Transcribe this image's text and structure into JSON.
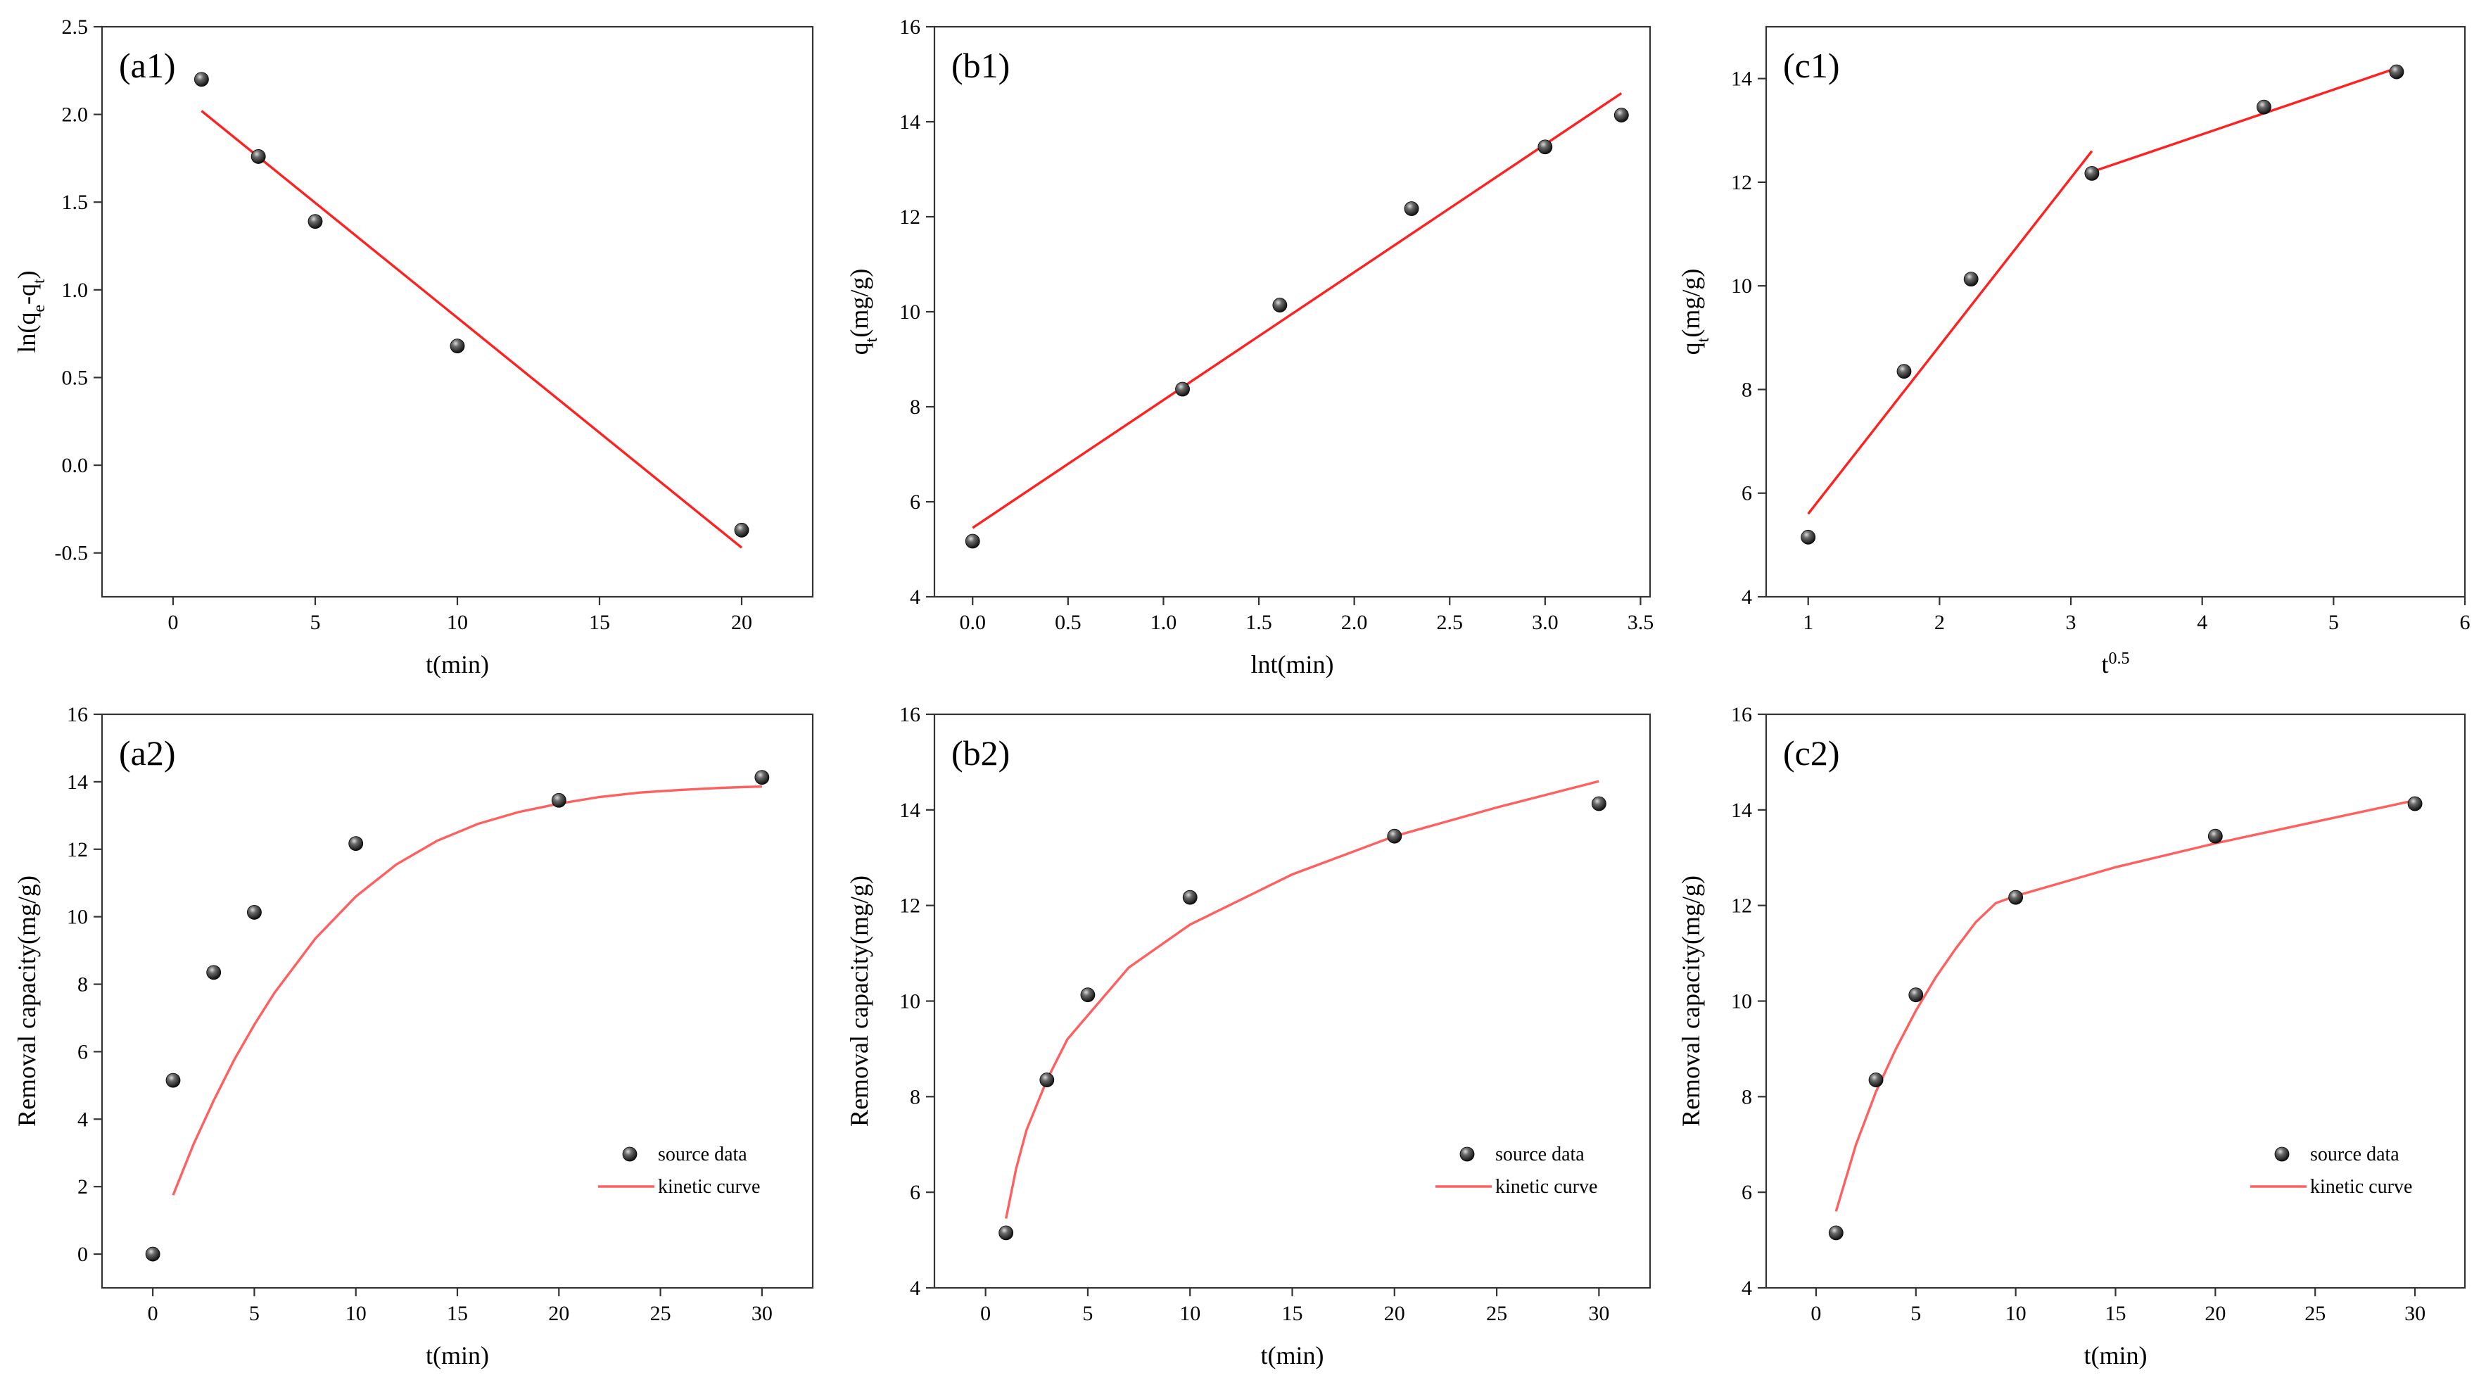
{
  "colors": {
    "fit_line": "#ff2020",
    "kinetic_curve": "#ff5f5f",
    "marker_dark": "#111111",
    "marker_light": "#bbbbbb",
    "axis": "#333333"
  },
  "chart_data": [
    {
      "id": "a1",
      "panel_label": "(a1)",
      "type": "scatter",
      "xlabel": "t(min)",
      "ylabel": "ln(qe-qt)",
      "xlim": [
        -2.5,
        22.5
      ],
      "ylim": [
        -0.75,
        2.5
      ],
      "xticks": [
        0,
        5,
        10,
        15,
        20
      ],
      "xtick_labels": [
        "0",
        "5",
        "10",
        "15",
        "20"
      ],
      "yticks": [
        -0.5,
        0.0,
        0.5,
        1.0,
        1.5,
        2.0,
        2.5
      ],
      "ytick_labels": [
        "-0.5",
        "0.0",
        "0.5",
        "1.0",
        "1.5",
        "2.0",
        "2.5"
      ],
      "points": {
        "x": [
          1,
          3,
          5,
          10,
          20
        ],
        "y": [
          2.2,
          1.76,
          1.39,
          0.68,
          -0.37
        ]
      },
      "line": {
        "style": "fit",
        "x": [
          1,
          20
        ],
        "y": [
          2.02,
          -0.47
        ]
      }
    },
    {
      "id": "b1",
      "panel_label": "(b1)",
      "type": "scatter",
      "xlabel": "lnt(min)",
      "ylabel": "qt(mg/g)",
      "xlim": [
        -0.2,
        3.55
      ],
      "ylim": [
        4,
        16
      ],
      "xticks": [
        0,
        0.5,
        1.0,
        1.5,
        2.0,
        2.5,
        3.0,
        3.5
      ],
      "xtick_labels": [
        "0.0",
        "0.5",
        "1.0",
        "1.5",
        "2.0",
        "2.5",
        "3.0",
        "3.5"
      ],
      "yticks": [
        4,
        6,
        8,
        10,
        12,
        14,
        16
      ],
      "ytick_labels": [
        "4",
        "6",
        "8",
        "10",
        "12",
        "14",
        "16"
      ],
      "points": {
        "x": [
          0,
          1.1,
          1.61,
          2.3,
          3.0,
          3.4
        ],
        "y": [
          5.17,
          8.37,
          10.14,
          12.17,
          13.47,
          14.14
        ]
      },
      "line": {
        "style": "fit",
        "x": [
          0,
          3.4
        ],
        "y": [
          5.45,
          14.6
        ]
      }
    },
    {
      "id": "c1",
      "panel_label": "(c1)",
      "type": "scatter",
      "xlabel": "t",
      "xlabel_sup": "0.5",
      "ylabel": "qt(mg/g)",
      "xlim": [
        0.68,
        6.0
      ],
      "ylim": [
        4,
        15
      ],
      "xticks": [
        1,
        2,
        3,
        4,
        5,
        6
      ],
      "xtick_labels": [
        "1",
        "2",
        "3",
        "4",
        "5",
        "6"
      ],
      "yticks": [
        4,
        6,
        8,
        10,
        12,
        14
      ],
      "ytick_labels": [
        "4",
        "6",
        "8",
        "10",
        "12",
        "14"
      ],
      "points": {
        "x": [
          1,
          1.73,
          2.24,
          3.16,
          4.47,
          5.48
        ],
        "y": [
          5.15,
          8.35,
          10.13,
          12.17,
          13.45,
          14.13
        ]
      },
      "line": {
        "style": "fit",
        "segments": [
          {
            "x": [
              1,
              3.16
            ],
            "y": [
              5.6,
              12.6
            ]
          },
          {
            "x": [
              3.16,
              5.48
            ],
            "y": [
              12.2,
              14.2
            ]
          }
        ]
      }
    },
    {
      "id": "a2",
      "panel_label": "(a2)",
      "type": "scatter",
      "xlabel": "t(min)",
      "ylabel": "Removal capacity(mg/g)",
      "xlim": [
        -2.5,
        32.5
      ],
      "ylim": [
        -1,
        16
      ],
      "xticks": [
        0,
        5,
        10,
        15,
        20,
        25,
        30
      ],
      "xtick_labels": [
        "0",
        "5",
        "10",
        "15",
        "20",
        "25",
        "30"
      ],
      "yticks": [
        0,
        2,
        4,
        6,
        8,
        10,
        12,
        14,
        16
      ],
      "ytick_labels": [
        "0",
        "2",
        "4",
        "6",
        "8",
        "10",
        "12",
        "14",
        "16"
      ],
      "points": {
        "x": [
          0,
          1,
          3,
          5,
          10,
          20,
          30
        ],
        "y": [
          0,
          5.15,
          8.35,
          10.13,
          12.17,
          13.45,
          14.13
        ]
      },
      "line": {
        "style": "curve",
        "x": [
          1,
          2,
          3,
          4,
          5,
          6,
          8,
          10,
          12,
          14,
          16,
          18,
          20,
          22,
          24,
          26,
          28,
          30
        ],
        "y": [
          1.75,
          3.25,
          4.55,
          5.75,
          6.8,
          7.75,
          9.35,
          10.6,
          11.55,
          12.25,
          12.75,
          13.1,
          13.35,
          13.55,
          13.68,
          13.76,
          13.82,
          13.86
        ]
      },
      "legend": {
        "position": "bottom-right",
        "entries": [
          "source data",
          "kinetic curve"
        ]
      }
    },
    {
      "id": "b2",
      "panel_label": "(b2)",
      "type": "scatter",
      "xlabel": "t(min)",
      "ylabel": "Removal capacity(mg/g)",
      "xlim": [
        -2.5,
        32.5
      ],
      "ylim": [
        4,
        16
      ],
      "xticks": [
        0,
        5,
        10,
        15,
        20,
        25,
        30
      ],
      "xtick_labels": [
        "0",
        "5",
        "10",
        "15",
        "20",
        "25",
        "30"
      ],
      "yticks": [
        4,
        6,
        8,
        10,
        12,
        14,
        16
      ],
      "ytick_labels": [
        "4",
        "6",
        "8",
        "10",
        "12",
        "14",
        "16"
      ],
      "points": {
        "x": [
          1,
          3,
          5,
          10,
          20,
          30
        ],
        "y": [
          5.15,
          8.35,
          10.13,
          12.17,
          13.45,
          14.13
        ]
      },
      "line": {
        "style": "curve",
        "x": [
          1,
          1.5,
          2,
          3,
          4,
          5,
          7,
          10,
          15,
          20,
          25,
          30
        ],
        "y": [
          5.45,
          6.5,
          7.3,
          8.35,
          9.2,
          9.7,
          10.7,
          11.6,
          12.65,
          13.45,
          14.05,
          14.6
        ]
      },
      "legend": {
        "position": "bottom-right",
        "entries": [
          "source data",
          "kinetic curve"
        ]
      }
    },
    {
      "id": "c2",
      "panel_label": "(c2)",
      "type": "scatter",
      "xlabel": "t(min)",
      "ylabel": "Removal capacity(mg/g)",
      "xlim": [
        -2.5,
        32.5
      ],
      "ylim": [
        4,
        16
      ],
      "xticks": [
        0,
        5,
        10,
        15,
        20,
        25,
        30
      ],
      "xtick_labels": [
        "0",
        "5",
        "10",
        "15",
        "20",
        "25",
        "30"
      ],
      "yticks": [
        4,
        6,
        8,
        10,
        12,
        14,
        16
      ],
      "ytick_labels": [
        "4",
        "6",
        "8",
        "10",
        "12",
        "14",
        "16"
      ],
      "points": {
        "x": [
          1,
          3,
          5,
          10,
          20,
          30
        ],
        "y": [
          5.15,
          8.35,
          10.13,
          12.17,
          13.45,
          14.13
        ]
      },
      "line": {
        "style": "curve",
        "x": [
          1,
          2,
          3,
          4,
          5,
          6,
          7,
          8,
          9,
          10,
          15,
          20,
          25,
          30
        ],
        "y": [
          5.6,
          7.0,
          8.1,
          9.0,
          9.8,
          10.5,
          11.1,
          11.65,
          12.05,
          12.2,
          12.8,
          13.3,
          13.75,
          14.2
        ]
      },
      "legend": {
        "position": "bottom-right",
        "entries": [
          "source data",
          "kinetic curve"
        ]
      }
    }
  ]
}
